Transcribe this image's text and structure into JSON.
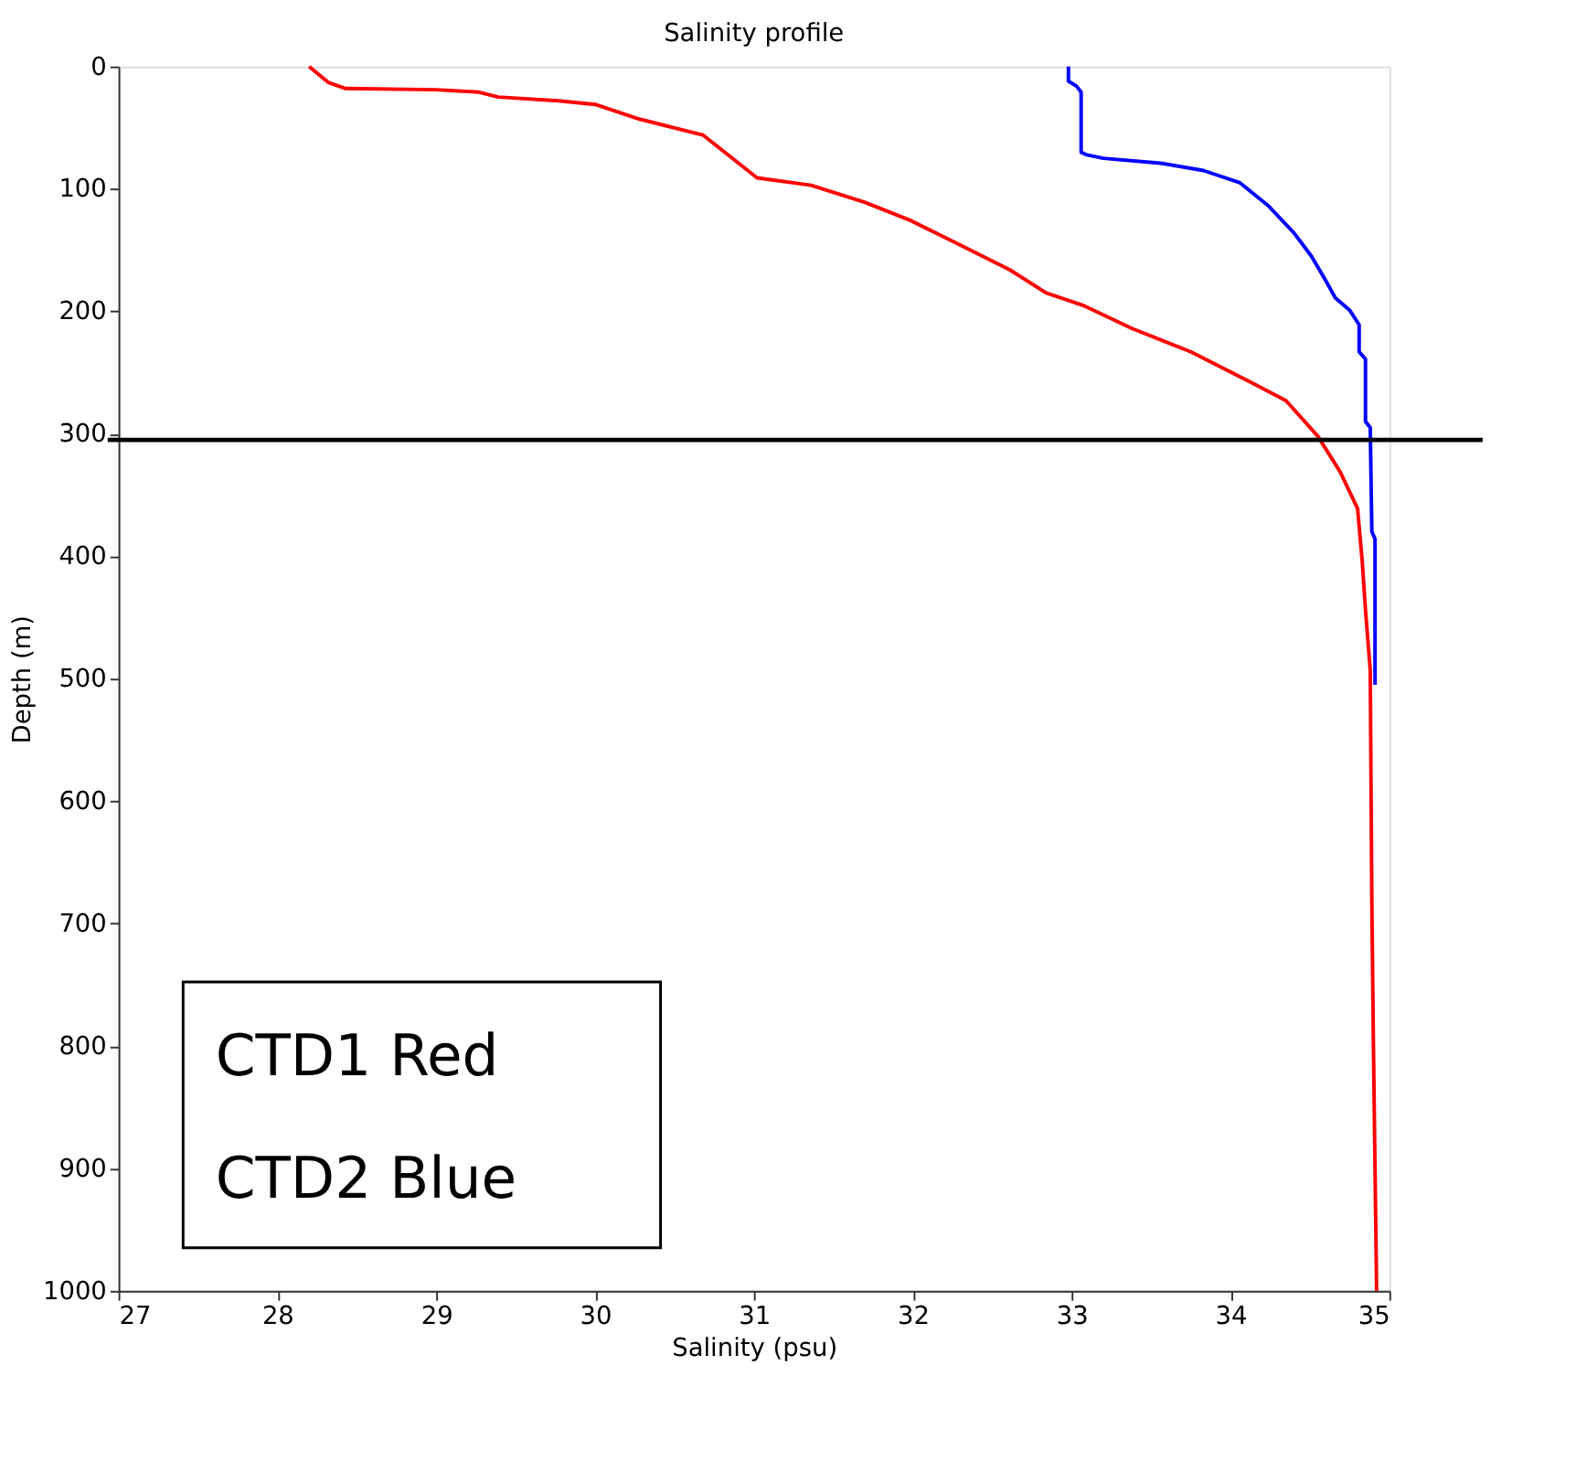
{
  "chart_data": {
    "type": "line",
    "title": "Salinity profile",
    "xlabel": "Salinity (psu)",
    "ylabel": "Depth (m)",
    "xlim": [
      27,
      35
    ],
    "xticks": [
      27,
      28,
      29,
      30,
      31,
      32,
      33,
      34,
      35
    ],
    "ylim": [
      1000,
      0
    ],
    "yticks": [
      0,
      100,
      200,
      300,
      400,
      500,
      600,
      700,
      800,
      900,
      1000
    ],
    "grid": false,
    "line_style": "solid",
    "marker": "none",
    "series": [
      {
        "color": "#ff0000",
        "x": [
          28.2,
          28.32,
          28.43,
          29.0,
          29.27,
          29.39,
          29.77,
          30.0,
          30.28,
          30.68,
          31.02,
          31.36,
          31.7,
          31.99,
          32.27,
          32.61,
          32.84,
          33.07,
          33.38,
          33.75,
          34.13,
          34.35,
          34.55,
          34.69,
          34.8,
          34.83,
          34.85,
          34.88,
          34.89,
          34.9,
          34.92
        ],
        "values": [
          0,
          13,
          18,
          19,
          21,
          25,
          28,
          31,
          43,
          56,
          91,
          97,
          111,
          126,
          144,
          166,
          185,
          195,
          214,
          233,
          258,
          273,
          302,
          331,
          361,
          405,
          444,
          493,
          683,
          800,
          1000
        ]
      },
      {
        "color": "#0000ff",
        "x": [
          32.98,
          32.98,
          33.03,
          33.06,
          33.06,
          33.09,
          33.2,
          33.56,
          33.83,
          34.06,
          34.24,
          34.4,
          34.51,
          34.6,
          34.66,
          34.75,
          34.81,
          34.81,
          34.85,
          34.85,
          34.88,
          34.89,
          34.91,
          34.91
        ],
        "values": [
          0,
          12,
          16,
          21,
          70,
          72,
          75,
          79,
          85,
          95,
          114,
          136,
          155,
          175,
          189,
          199,
          211,
          233,
          239,
          290,
          295,
          380,
          386,
          505
        ]
      }
    ],
    "ref_lines": [
      {
        "axis": "y",
        "value": 305,
        "color": "#000000",
        "line_style": "solid"
      }
    ],
    "annotations": [
      "CTD1 Red",
      "CTD2 Blue"
    ]
  }
}
